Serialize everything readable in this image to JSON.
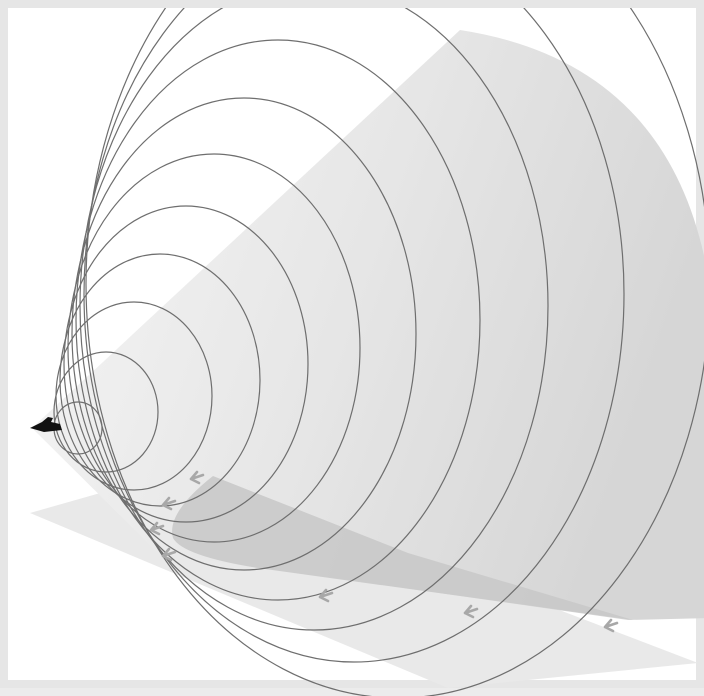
{
  "figure": {
    "subject": "sonic-boom-cone",
    "wavefront_count": 11,
    "ground_arrow_count": 7,
    "colors": {
      "frame": "#e6e6e6",
      "background": "#ffffff",
      "ground_plane": "#e9e9e9",
      "cone_fill_light": "#f4f4f4",
      "cone_fill_dark": "#d9d9d9",
      "boom_footprint": "#c9c9c9",
      "wavefront_stroke": "#6e6e6e",
      "arrow": "#a8a8a8",
      "aircraft": "#111111"
    },
    "icons": [
      "aircraft-icon",
      "arrow-left-icon"
    ]
  }
}
